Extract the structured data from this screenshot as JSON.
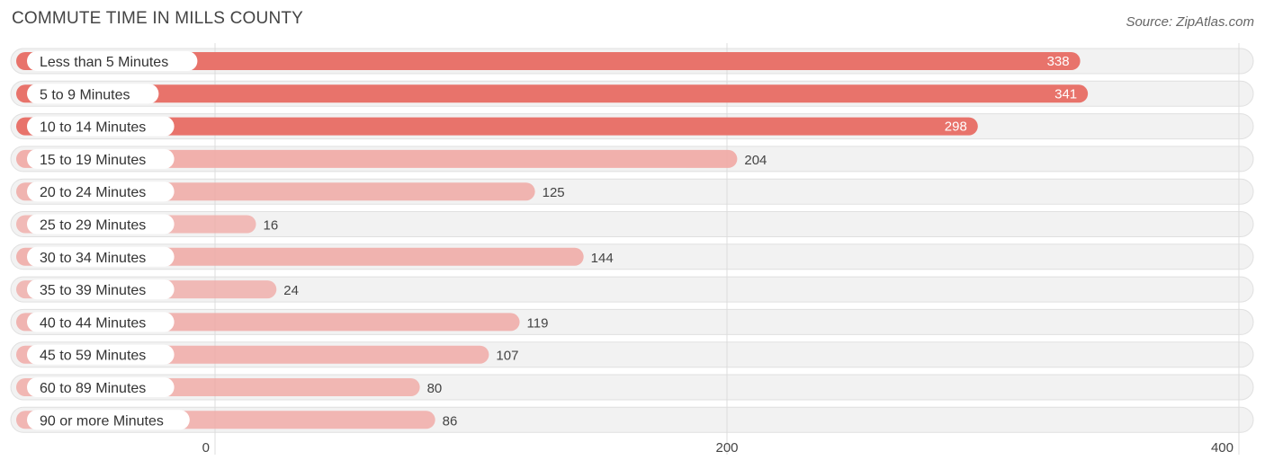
{
  "chart_data": {
    "type": "bar",
    "orientation": "horizontal",
    "title": "COMMUTE TIME IN MILLS COUNTY",
    "source": "Source: ZipAtlas.com",
    "categories": [
      "Less than 5 Minutes",
      "5 to 9 Minutes",
      "10 to 14 Minutes",
      "15 to 19 Minutes",
      "20 to 24 Minutes",
      "25 to 29 Minutes",
      "30 to 34 Minutes",
      "35 to 39 Minutes",
      "40 to 44 Minutes",
      "45 to 59 Minutes",
      "60 to 89 Minutes",
      "90 or more Minutes"
    ],
    "values": [
      338,
      341,
      298,
      204,
      125,
      16,
      144,
      24,
      119,
      107,
      80,
      86
    ],
    "xlim": [
      0,
      400
    ],
    "xticks": [
      0,
      200,
      400
    ],
    "grid": true,
    "bar_color_strong": "#e8736b",
    "bar_color_light": "#f0a8a4"
  }
}
